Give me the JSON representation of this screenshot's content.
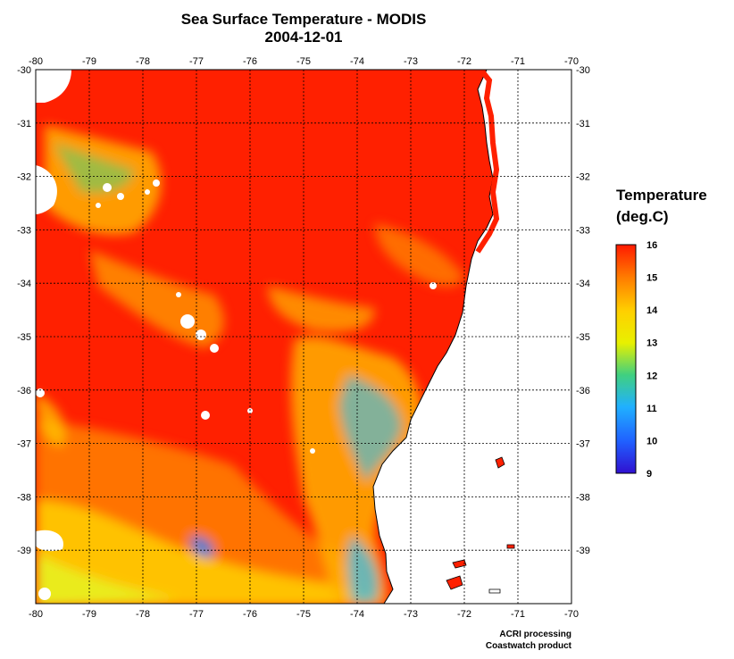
{
  "title": "Sea Surface Temperature - MODIS",
  "date": "2004-12-01",
  "legend": {
    "title_line1": "Temperature",
    "title_line2": "(deg.C)",
    "min": 9,
    "max": 16,
    "ticks": [
      "16",
      "15",
      "14",
      "13",
      "12",
      "11",
      "10",
      "9"
    ]
  },
  "axes": {
    "lon_ticks": [
      "-80",
      "-79",
      "-78",
      "-77",
      "-76",
      "-75",
      "-74",
      "-73",
      "-72",
      "-71",
      "-70"
    ],
    "lat_ticks": [
      "-30",
      "-31",
      "-32",
      "-33",
      "-34",
      "-35",
      "-36",
      "-37",
      "-38",
      "-39"
    ],
    "lon_range": [
      -80,
      -70
    ],
    "lat_range": [
      -40,
      -30
    ]
  },
  "credit": {
    "line1": "ACRI processing",
    "line2": "Coastwatch product"
  },
  "colors": {
    "warm": "#ff2000",
    "mid": "#ffe000",
    "cool": "#30c0ff",
    "cold": "#2020ff",
    "land": "#ffffff"
  }
}
